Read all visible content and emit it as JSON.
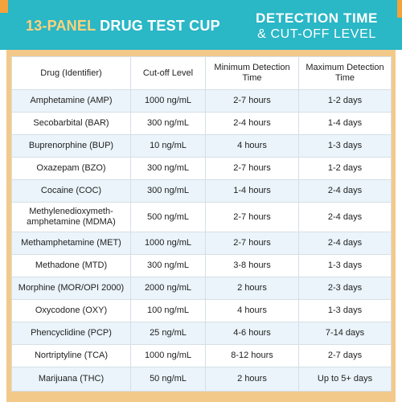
{
  "header": {
    "title_accent": "13-PANEL",
    "title_main": "DRUG TEST CUP",
    "subtitle_line1": "DETECTION TIME",
    "subtitle_line2": "& CUT-OFF LEVEL"
  },
  "colors": {
    "header_bg": "#2ab7c6",
    "accent": "#f4a23a",
    "panel_bg": "#f3c98a",
    "row_alt": "#eaf4fa"
  },
  "table": {
    "columns": [
      "Drug (Identifier)",
      "Cut-off Level",
      "Minimum Detection Time",
      "Maximum Detection Time"
    ],
    "rows": [
      [
        "Amphetamine (AMP)",
        "1000 ng/mL",
        "2-7 hours",
        "1-2 days"
      ],
      [
        "Secobarbital (BAR)",
        "300 ng/mL",
        "2-4 hours",
        "1-4 days"
      ],
      [
        "Buprenorphine (BUP)",
        "10 ng/mL",
        "4 hours",
        "1-3 days"
      ],
      [
        "Oxazepam (BZO)",
        "300 ng/mL",
        "2-7 hours",
        "1-2 days"
      ],
      [
        "Cocaine (COC)",
        "300 ng/mL",
        "1-4 hours",
        "2-4 days"
      ],
      [
        "Methylenedioxymeth-amphetamine (MDMA)",
        "500 ng/mL",
        "2-7 hours",
        "2-4 days"
      ],
      [
        "Methamphetamine (MET)",
        "1000 ng/mL",
        "2-7 hours",
        "2-4 days"
      ],
      [
        "Methadone (MTD)",
        "300 ng/mL",
        "3-8 hours",
        "1-3 days"
      ],
      [
        "Morphine (MOR/OPI 2000)",
        "2000 ng/mL",
        "2 hours",
        "2-3 days"
      ],
      [
        "Oxycodone (OXY)",
        "100 ng/mL",
        "4 hours",
        "1-3 days"
      ],
      [
        "Phencyclidine (PCP)",
        "25 ng/mL",
        "4-6 hours",
        "7-14 days"
      ],
      [
        "Nortriptyline (TCA)",
        "1000 ng/mL",
        "8-12 hours",
        "2-7 days"
      ],
      [
        "Marijuana (THC)",
        "50 ng/mL",
        "2 hours",
        "Up to 5+ days"
      ]
    ]
  }
}
